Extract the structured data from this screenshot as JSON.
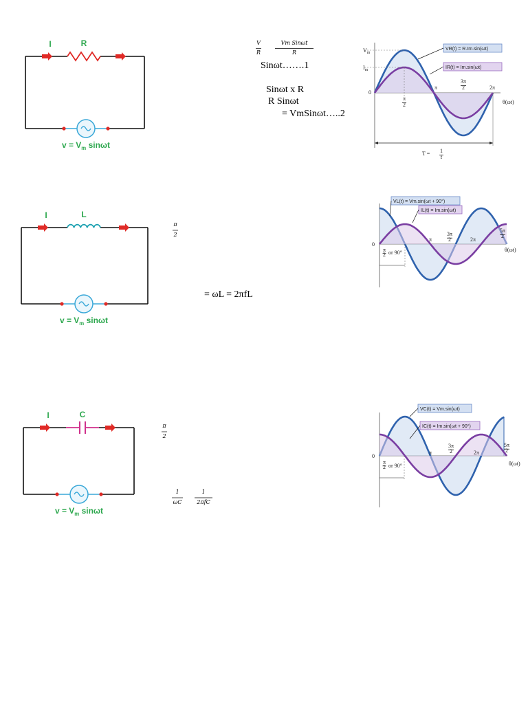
{
  "resistor_section": {
    "circuit": {
      "current_label": "I",
      "component_label": "R",
      "source_label": {
        "prefix": "v = V",
        "sub": "m",
        "suffix": " sinωt"
      }
    },
    "equations": {
      "fraction_1": {
        "numerator": "V",
        "denominator": "R"
      },
      "fraction_2": {
        "numerator": "Vm Sinωt",
        "denominator": "R"
      },
      "line_1": "Sinωt…….1",
      "line_2": "Sinωt x R",
      "line_3": "R Sinωt",
      "line_4": "= VmSinωt…..2"
    },
    "graph": {
      "voltage_peak": {
        "base": "V",
        "sub": "m"
      },
      "current_peak": {
        "base": "I",
        "sub": "m"
      },
      "origin": "0",
      "tick_half_pi": {
        "numerator": "π",
        "denominator": "2"
      },
      "tick_pi": "π",
      "tick_three_half_pi": {
        "numerator": "3π",
        "denominator": "2"
      },
      "tick_two_pi": "2π",
      "axis_label": "θ(ωt)",
      "voltage_legend": "VR(t) = R.Im.sin(ωt)",
      "current_legend": "IR(t) = Im.sin(ωt)",
      "period_label": {
        "prefix": "T = ",
        "numerator": "1",
        "denominator": "f"
      }
    }
  },
  "inductor_section": {
    "circuit": {
      "current_label": "I",
      "component_label": "L",
      "source_label": {
        "prefix": "v = V",
        "sub": "m",
        "suffix": " sinωt"
      }
    },
    "equations": {
      "fraction_1": {
        "numerator": "π",
        "denominator": "2"
      },
      "line_1": "= ωL = 2πfL"
    },
    "graph": {
      "voltage_legend": "VL(t) = Vm.sin(ωt + 90°)",
      "current_legend": "IL(t) = Im.sin(ωt)",
      "origin": "0",
      "phase_label": {
        "numerator": "π",
        "denominator": "2",
        "suffix": "or 90°"
      },
      "tick_pi": "π",
      "tick_three_half_pi": {
        "numerator": "3π",
        "denominator": "2"
      },
      "tick_two_pi": "2π",
      "tick_five_half_pi": {
        "numerator": "5π",
        "denominator": "2"
      },
      "axis_label": "θ(ωt)"
    }
  },
  "capacitor_section": {
    "circuit": {
      "current_label": "I",
      "component_label": "C",
      "source_label": {
        "prefix": "v = V",
        "sub": "m",
        "suffix": " sinωt"
      }
    },
    "equations": {
      "fraction_1": {
        "numerator": "π",
        "denominator": "2"
      },
      "fraction_2": {
        "numerator": "1",
        "denominator": "ωC"
      },
      "fraction_3": {
        "numerator": "1",
        "denominator": "2πfC"
      }
    },
    "graph": {
      "voltage_legend": "VC(t) = Vm.sin(ωt)",
      "current_legend": "IC(t) = Im.sin(ωt + 90°)",
      "origin": "0",
      "phase_label": {
        "numerator": "π",
        "denominator": "2",
        "suffix": "or 90°"
      },
      "tick_pi": "π",
      "tick_three_half_pi": {
        "numerator": "3π",
        "denominator": "2"
      },
      "tick_two_pi": "2π",
      "tick_five_half_pi": {
        "numerator": "5π",
        "denominator": "2"
      },
      "axis_label": "θ(ωt)"
    }
  }
}
